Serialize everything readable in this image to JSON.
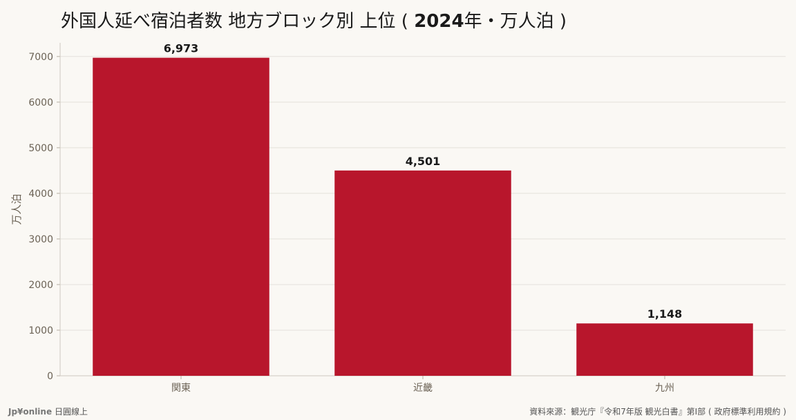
{
  "title": {
    "before": "外国人延べ宿泊者数 地方ブロック別 上位 ( ",
    "year": "2024",
    "after": "年・万人泊 )"
  },
  "footer": {
    "brand": "Jp¥online",
    "brand_suffix": "日圓線上",
    "source": "資料來源：観光庁『令和7年版 観光白書』第I部 ( 政府標準利用規約 )"
  },
  "colors": {
    "bar": "#b8162c",
    "background": "#faf8f4",
    "grid": "#e4e1db",
    "axis_text": "#6b6255"
  },
  "chart_data": {
    "type": "bar",
    "title": "外国人延べ宿泊者数 地方ブロック別 上位 ( 2024年・万人泊 )",
    "categories": [
      "関東",
      "近畿",
      "九州"
    ],
    "values": [
      6973,
      4501,
      1148
    ],
    "value_labels": [
      "6,973",
      "4,501",
      "1,148"
    ],
    "ylabel": "万人泊",
    "xlabel": "",
    "ylim": [
      0,
      7300
    ],
    "yticks": [
      0,
      1000,
      2000,
      3000,
      4000,
      5000,
      6000,
      7000
    ],
    "grid": true,
    "legend": "none"
  }
}
